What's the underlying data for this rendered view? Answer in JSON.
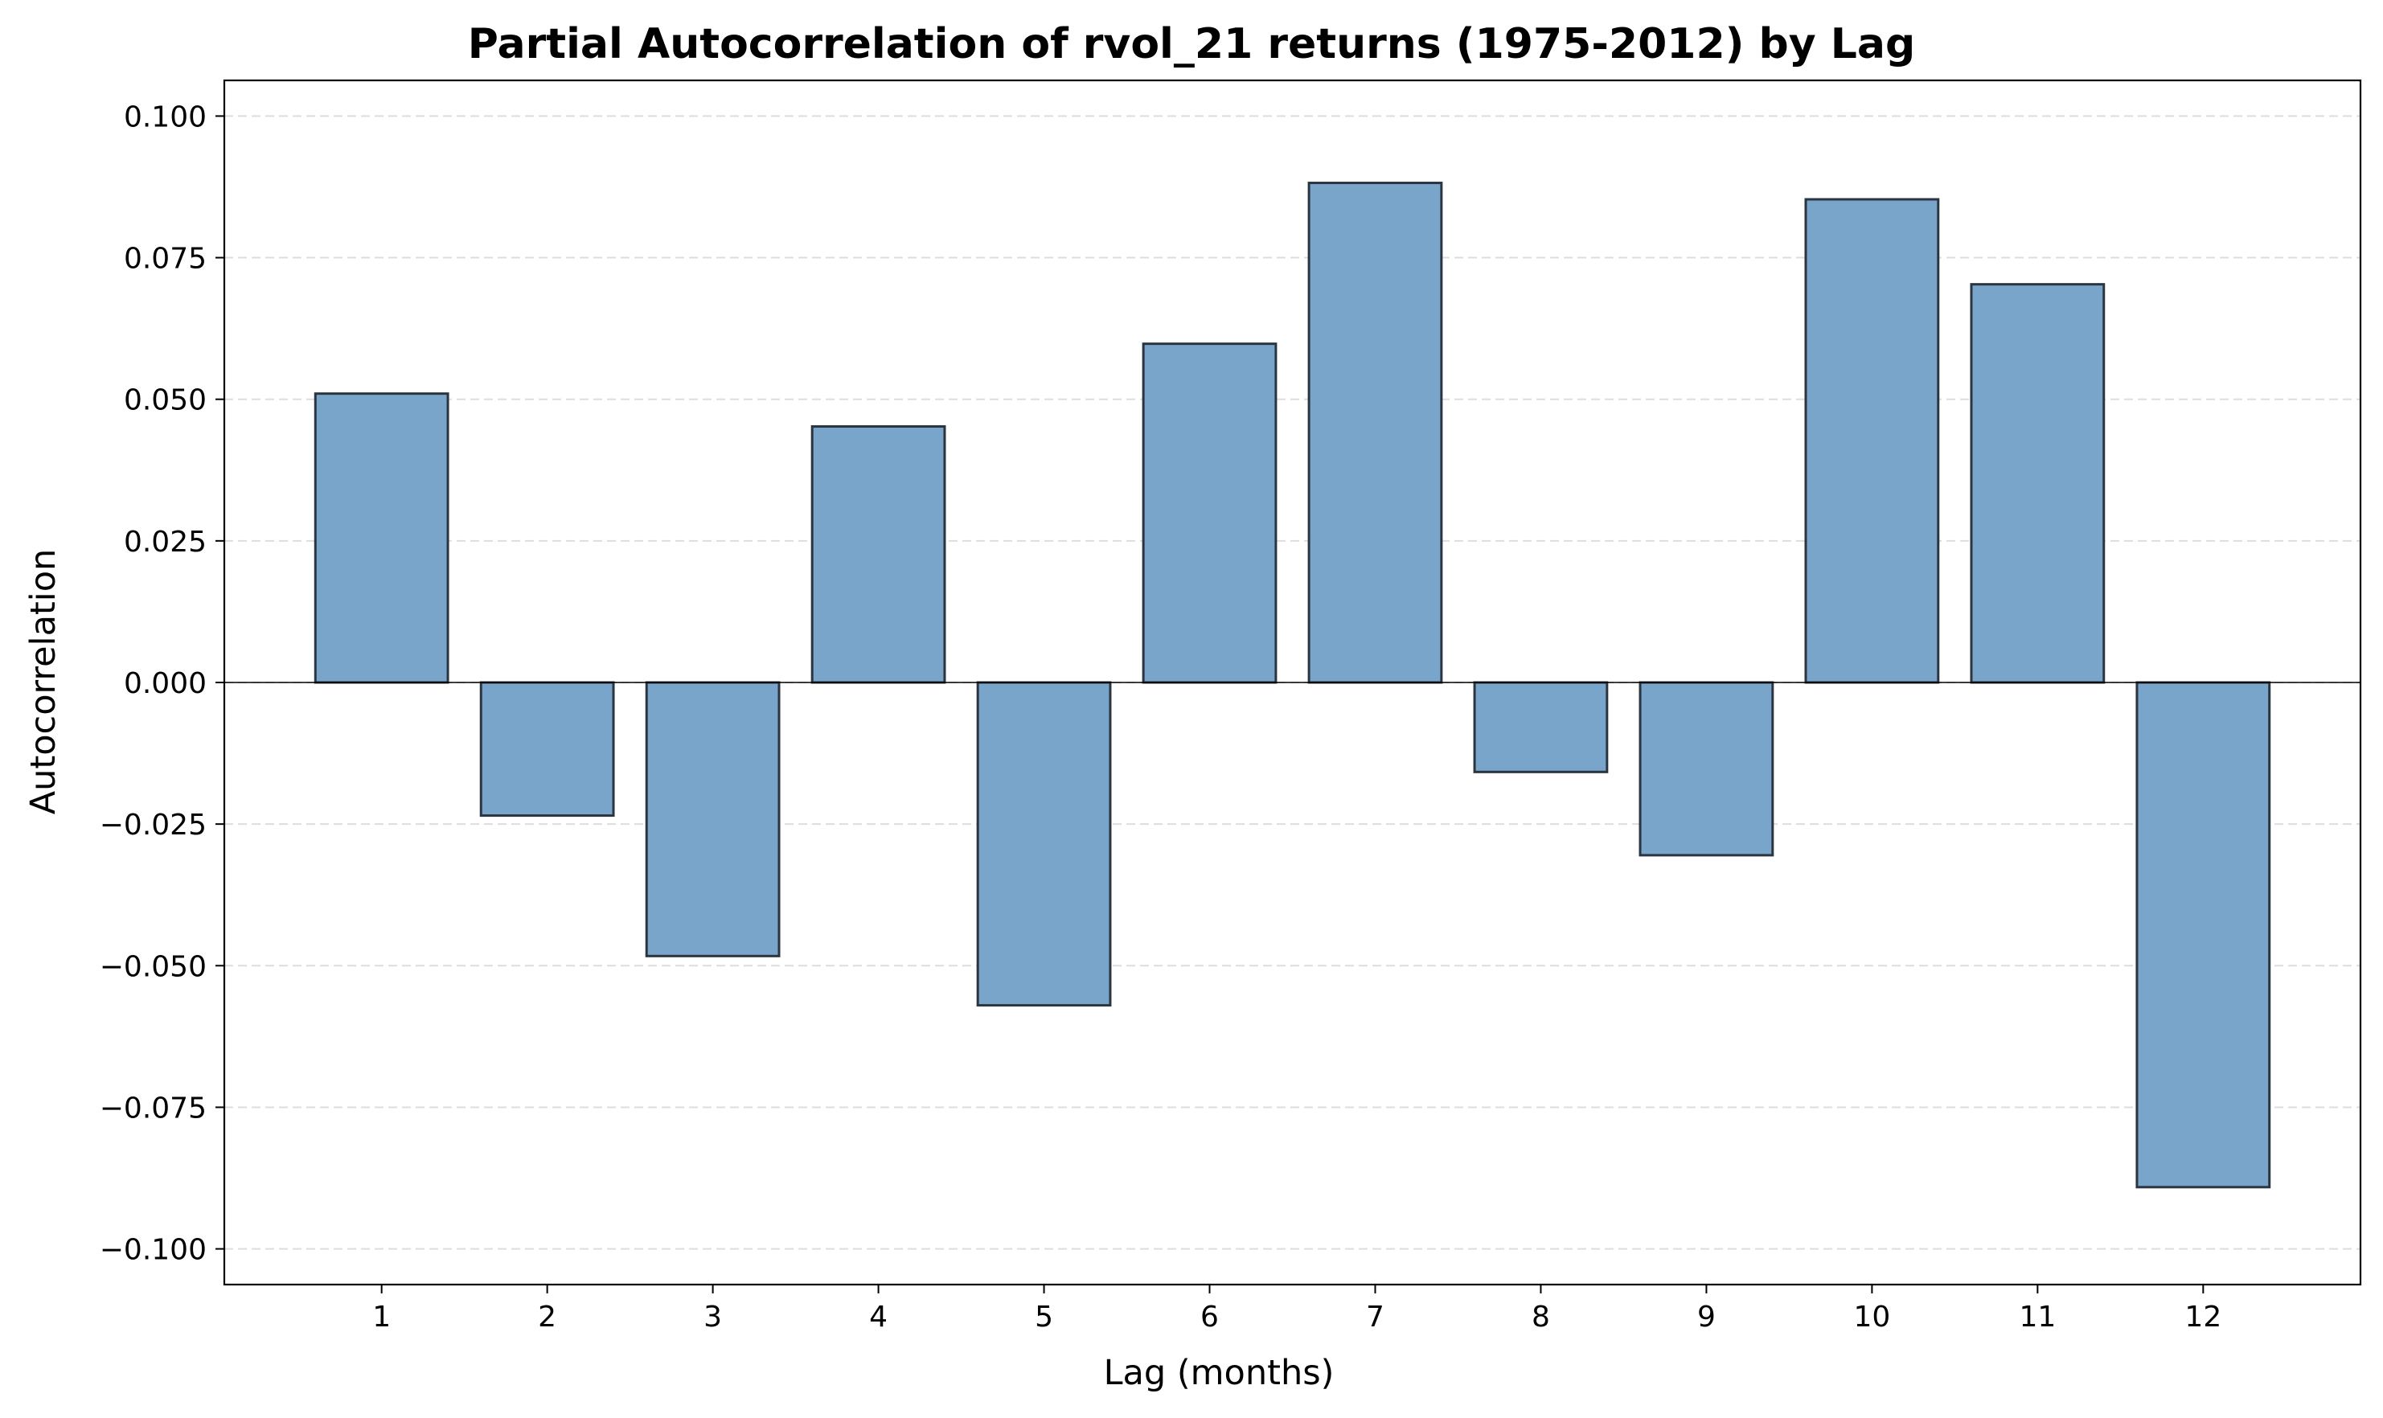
{
  "chart_data": {
    "type": "bar",
    "title": "Partial Autocorrelation of rvol_21 returns (1975-2012) by Lag",
    "xlabel": "Lag (months)",
    "ylabel": "Autocorrelation",
    "categories": [
      "1",
      "2",
      "3",
      "4",
      "5",
      "6",
      "7",
      "8",
      "9",
      "10",
      "11",
      "12"
    ],
    "values": [
      0.051,
      -0.0235,
      -0.0483,
      0.0452,
      -0.057,
      0.0598,
      0.0882,
      -0.0158,
      -0.0305,
      0.0853,
      0.0703,
      -0.0891
    ],
    "ylim": [
      -0.1063,
      0.1063
    ],
    "yticks": [
      -0.1,
      -0.075,
      -0.05,
      -0.025,
      0.0,
      0.025,
      0.05,
      0.075,
      0.1
    ],
    "ytick_labels": [
      "−0.100",
      "−0.075",
      "−0.050",
      "−0.025",
      "0.000",
      "0.025",
      "0.050",
      "0.075",
      "0.100"
    ],
    "grid": "y-dashed",
    "legend": "none",
    "colors": {
      "bar_fill": "#7aa5ca",
      "bar_edge": "#2a3540",
      "grid": "#dddddd",
      "zero_line": "#000000"
    }
  }
}
